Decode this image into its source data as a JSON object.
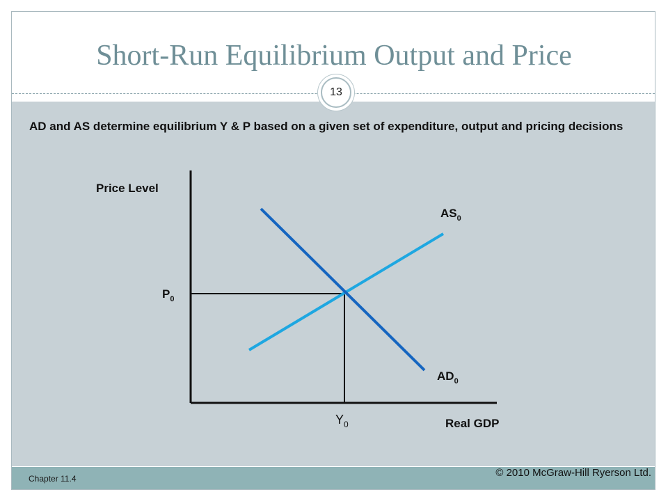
{
  "slide": {
    "title": "Short-Run Equilibrium Output and Price",
    "page_number": "13",
    "intro": "AD and AS determine equilibrium Y & P based on a given set of expenditure, output and pricing decisions",
    "footer": {
      "chapter": "Chapter 11.4",
      "copyright": "© 2010 McGraw-Hill Ryerson Ltd."
    }
  },
  "diagram": {
    "y_axis_label": "Price Level",
    "x_axis_label": "Real GDP",
    "price_label": {
      "base": "P",
      "sub": "0"
    },
    "output_label": {
      "base": "Y",
      "sub": "0"
    },
    "ad_label": {
      "base": "AD",
      "sub": "0"
    },
    "as_label": {
      "base": "AS",
      "sub": "0"
    }
  },
  "colors": {
    "ad_curve": "#1565c0",
    "as_curve": "#1ea7e1",
    "axes": "#111111",
    "title": "#6f8f97",
    "panel": "#c7d1d6",
    "footer": "#8fb3b6"
  }
}
